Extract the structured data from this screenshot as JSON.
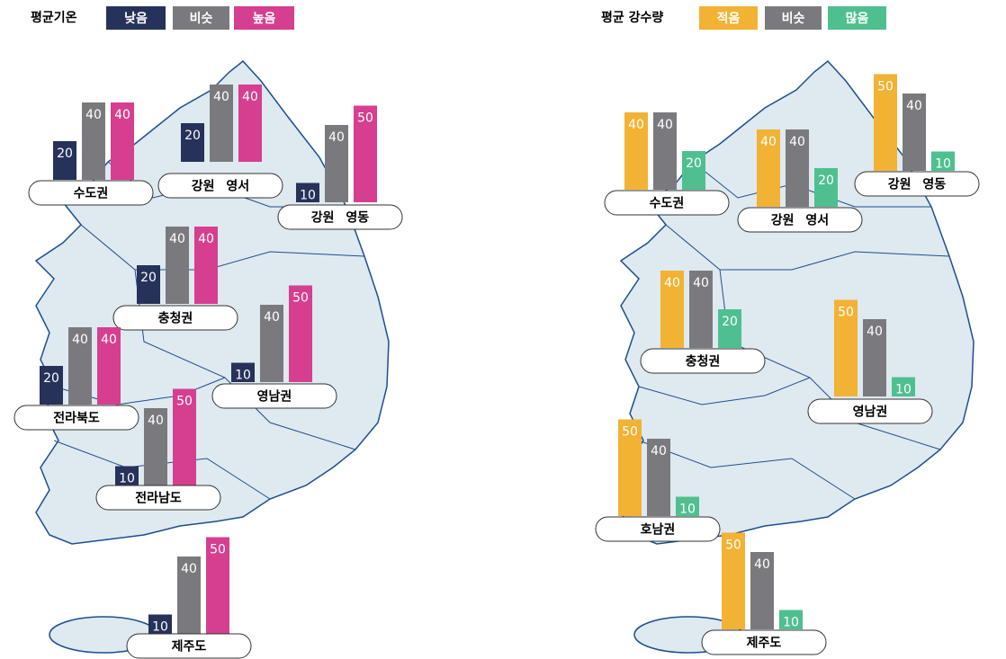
{
  "panels": [
    {
      "title": "평균기온",
      "legend": [
        "낮음",
        "비슷",
        "높음"
      ],
      "colors": [
        "#26325a",
        "#7a7a7e",
        "#d63f8f"
      ],
      "regions": [
        {
          "name": "수도권",
          "values": [
            20,
            40,
            40
          ]
        },
        {
          "name": "강원 영서",
          "values": [
            20,
            40,
            40
          ]
        },
        {
          "name": "강원 영동",
          "values": [
            10,
            40,
            50
          ]
        },
        {
          "name": "충청권",
          "values": [
            20,
            40,
            40
          ]
        },
        {
          "name": "영남권",
          "values": [
            10,
            40,
            50
          ]
        },
        {
          "name": "전라북도",
          "values": [
            20,
            40,
            40
          ]
        },
        {
          "name": "전라남도",
          "values": [
            10,
            40,
            50
          ]
        },
        {
          "name": "제주도",
          "values": [
            10,
            40,
            50
          ]
        }
      ]
    },
    {
      "title": "평균  강수량",
      "legend": [
        "적음",
        "비슷",
        "많음"
      ],
      "colors": [
        "#f2b233",
        "#7a7a7e",
        "#4fbf90"
      ],
      "regions": [
        {
          "name": "수도권",
          "values": [
            40,
            40,
            20
          ]
        },
        {
          "name": "강원 영서",
          "values": [
            40,
            40,
            20
          ]
        },
        {
          "name": "강원 영동",
          "values": [
            50,
            40,
            10
          ]
        },
        {
          "name": "충청권",
          "values": [
            40,
            40,
            20
          ]
        },
        {
          "name": "영남권",
          "values": [
            50,
            40,
            10
          ]
        },
        {
          "name": "호남권",
          "values": [
            50,
            40,
            10
          ]
        },
        {
          "name": "제주도",
          "values": [
            50,
            40,
            10
          ]
        }
      ]
    }
  ]
}
